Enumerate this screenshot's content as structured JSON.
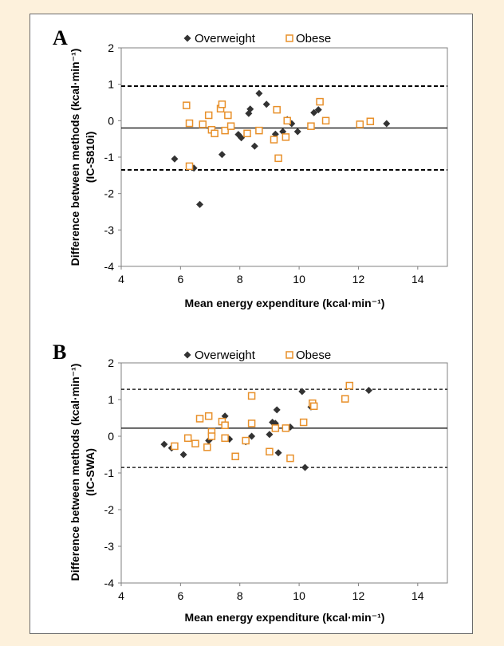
{
  "colors": {
    "background": "#fdf1dc",
    "overweight": "#333333",
    "obese": "#e8902a"
  },
  "chart_data": [
    {
      "type": "scatter",
      "panel_label": "A",
      "title": "",
      "xlabel": "Mean energy expenditure (kcal·min⁻¹)",
      "ylabel": "Difference between methods (kcal·min⁻¹)",
      "ylabel2": "(IC-S810i)",
      "xlim": [
        4,
        15
      ],
      "ylim": [
        -4,
        2
      ],
      "xticks": [
        4,
        6,
        8,
        10,
        12,
        14
      ],
      "yticks": [
        2,
        1,
        0,
        -1,
        -2,
        -3,
        -4
      ],
      "grid": false,
      "legend_position": "top-center",
      "reference_lines": [
        {
          "y": 0.95,
          "style": "dashed"
        },
        {
          "y": -0.2,
          "style": "solid"
        },
        {
          "y": -1.35,
          "style": "dashed"
        }
      ],
      "series": [
        {
          "name": "Overweight",
          "marker": "diamond",
          "color": "#333333",
          "x": [
            5.8,
            6.45,
            6.65,
            7.4,
            7.95,
            8.05,
            8.3,
            8.35,
            8.5,
            8.65,
            8.9,
            9.2,
            9.45,
            9.6,
            9.75,
            9.95,
            10.5,
            10.65,
            12.95
          ],
          "y": [
            -1.05,
            -1.3,
            -2.3,
            -0.93,
            -0.38,
            -0.47,
            0.2,
            0.32,
            -0.7,
            0.75,
            0.45,
            -0.37,
            -0.3,
            0.03,
            -0.08,
            -0.3,
            0.22,
            0.3,
            -0.08
          ]
        },
        {
          "name": "Obese",
          "marker": "open-square",
          "color": "#e8902a",
          "x": [
            6.2,
            6.3,
            6.3,
            6.75,
            6.95,
            7.05,
            7.15,
            7.35,
            7.4,
            7.5,
            7.6,
            7.7,
            8.25,
            8.65,
            9.15,
            9.25,
            9.3,
            9.55,
            9.6,
            10.4,
            10.7,
            10.9,
            12.05,
            12.4
          ],
          "y": [
            0.42,
            -0.07,
            -1.25,
            -0.1,
            0.15,
            -0.25,
            -0.35,
            0.33,
            0.45,
            -0.27,
            0.15,
            -0.15,
            -0.35,
            -0.27,
            -0.52,
            0.3,
            -1.03,
            -0.45,
            0.0,
            -0.15,
            0.52,
            0.0,
            -0.1,
            -0.02
          ]
        }
      ]
    },
    {
      "type": "scatter",
      "panel_label": "B",
      "title": "",
      "xlabel": "Mean energy expenditure (kcal·min⁻¹)",
      "ylabel": "Difference between methods (kcal·min⁻¹)",
      "ylabel2": "(IC-SWA)",
      "xlim": [
        4,
        15
      ],
      "ylim": [
        -4,
        2
      ],
      "xticks": [
        4,
        6,
        8,
        10,
        12,
        14
      ],
      "yticks": [
        2,
        1,
        0,
        -1,
        -2,
        -3,
        -4
      ],
      "grid": false,
      "legend_position": "top-center",
      "reference_lines": [
        {
          "y": 1.28,
          "style": "dashed"
        },
        {
          "y": 0.22,
          "style": "solid"
        },
        {
          "y": -0.85,
          "style": "dashed"
        }
      ],
      "series": [
        {
          "name": "Overweight",
          "marker": "diamond",
          "color": "#333333",
          "x": [
            5.45,
            5.7,
            6.1,
            6.95,
            7.0,
            7.5,
            7.65,
            8.2,
            8.4,
            9.0,
            9.1,
            9.2,
            9.25,
            9.3,
            9.7,
            10.1,
            10.2,
            10.4,
            12.35
          ],
          "y": [
            -0.22,
            -0.32,
            -0.5,
            -0.12,
            -0.08,
            0.55,
            -0.08,
            -0.15,
            0.0,
            0.05,
            0.38,
            0.35,
            0.72,
            -0.45,
            0.25,
            1.22,
            -0.85,
            0.8,
            1.25
          ]
        },
        {
          "name": "Obese",
          "marker": "open-square",
          "color": "#e8902a",
          "x": [
            5.8,
            6.25,
            6.5,
            6.65,
            6.9,
            6.95,
            7.05,
            7.05,
            7.4,
            7.5,
            7.5,
            7.85,
            8.2,
            8.4,
            8.4,
            9.0,
            9.2,
            9.55,
            9.7,
            10.15,
            10.45,
            10.5,
            11.55,
            11.7
          ],
          "y": [
            -0.27,
            -0.05,
            -0.2,
            0.48,
            -0.3,
            0.55,
            0.12,
            0.0,
            0.4,
            -0.05,
            0.3,
            -0.55,
            -0.12,
            1.1,
            0.35,
            -0.42,
            0.22,
            0.22,
            -0.6,
            0.38,
            0.9,
            0.82,
            1.02,
            1.38
          ]
        }
      ]
    }
  ]
}
